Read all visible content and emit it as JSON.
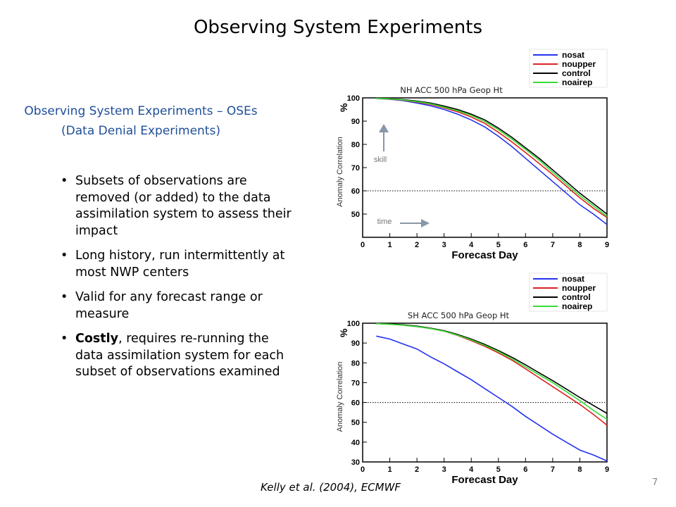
{
  "slide": {
    "title": "Observing System Experiments",
    "subtitle": [
      "Observing System Experiments – OSEs",
      "(Data Denial Experiments)"
    ],
    "bullets": [
      {
        "text": "Subsets of observations are removed (or added) to the data assimilation system to assess their impact"
      },
      {
        "text": "Long history, run intermittently at most NWP centers"
      },
      {
        "text": "Valid for any forecast range or measure"
      },
      {
        "bold": "Costly",
        "text": ", requires re-running the data assimilation system for each subset of observations examined"
      }
    ],
    "citation": "Kelly et al. (2004), ECMWF",
    "page_number": "7"
  },
  "chart_data": [
    {
      "type": "line",
      "title": "NH ACC 500 hPa Geop Ht",
      "x_label": "Forecast Day",
      "y_label": "Anomaly Correlation",
      "y_unit": "%",
      "annotations": [
        "skill",
        "time"
      ],
      "x": [
        0.5,
        1,
        1.5,
        2,
        2.5,
        3,
        3.5,
        4,
        4.5,
        5,
        5.5,
        6,
        6.5,
        7,
        7.5,
        8,
        8.5,
        9
      ],
      "xlim": [
        0,
        9
      ],
      "xticks": [
        0,
        1,
        2,
        3,
        4,
        5,
        6,
        7,
        8,
        9
      ],
      "ylim": [
        40,
        100
      ],
      "yticks": [
        50,
        60,
        70,
        80,
        90,
        100
      ],
      "hline": 60,
      "series": [
        {
          "name": "nosat",
          "color": "#2233ee",
          "values": [
            99.8,
            99.4,
            98.8,
            97.8,
            96.6,
            95,
            93,
            90.5,
            87.5,
            83.5,
            79,
            74,
            69,
            64,
            59,
            54,
            50,
            45.5
          ]
        },
        {
          "name": "noupper",
          "color": "#dd2222",
          "values": [
            99.8,
            99.5,
            99,
            98.2,
            97.2,
            95.7,
            94,
            91.8,
            89,
            85.2,
            81,
            76.5,
            71.8,
            67,
            62,
            57,
            52.5,
            48.5
          ]
        },
        {
          "name": "control",
          "color": "#000000",
          "values": [
            99.8,
            99.6,
            99.2,
            98.6,
            97.8,
            96.5,
            95,
            93,
            90.5,
            87,
            83,
            78.5,
            74,
            69,
            64,
            59,
            54.5,
            50
          ]
        },
        {
          "name": "noairep",
          "color": "#33dd33",
          "values": [
            99.8,
            99.6,
            99.1,
            98.4,
            97.5,
            96,
            94.5,
            92.5,
            89.8,
            86.3,
            82.2,
            77.8,
            73.2,
            68,
            63,
            58,
            53.5,
            49
          ]
        }
      ]
    },
    {
      "type": "line",
      "title": "SH ACC 500 hPa Geop Ht",
      "x_label": "Forecast Day",
      "y_label": "Anomaly Correlation",
      "y_unit": "%",
      "x": [
        0.5,
        1,
        1.5,
        2,
        2.5,
        3,
        3.5,
        4,
        4.5,
        5,
        5.5,
        6,
        6.5,
        7,
        7.5,
        8,
        8.5,
        9
      ],
      "xlim": [
        0,
        9
      ],
      "xticks": [
        0,
        1,
        2,
        3,
        4,
        5,
        6,
        7,
        8,
        9
      ],
      "ylim": [
        30,
        100
      ],
      "yticks": [
        30,
        40,
        50,
        60,
        70,
        80,
        90,
        100
      ],
      "hline": 60,
      "series": [
        {
          "name": "nosat",
          "color": "#2233ee",
          "values": [
            93.5,
            92,
            89.5,
            87,
            83,
            79.5,
            75.5,
            71.5,
            67,
            62.5,
            58,
            53,
            48.5,
            44,
            40,
            36,
            33.5,
            30.5
          ]
        },
        {
          "name": "noupper",
          "color": "#dd2222",
          "values": [
            99.8,
            99.5,
            99,
            98.3,
            97.3,
            96,
            93.8,
            91.2,
            88.3,
            85,
            81.3,
            77,
            72.5,
            68,
            63.5,
            59,
            54,
            48.5
          ]
        },
        {
          "name": "control",
          "color": "#000000",
          "values": [
            99.8,
            99.6,
            99.2,
            98.5,
            97.5,
            96.2,
            94.3,
            92,
            89.3,
            86.2,
            82.8,
            79,
            75,
            71,
            66.8,
            62.5,
            58.5,
            54.5
          ]
        },
        {
          "name": "noairep",
          "color": "#33dd33",
          "values": [
            99.8,
            99.5,
            99,
            98.3,
            97.3,
            96,
            94,
            91.6,
            88.8,
            85.7,
            82,
            78,
            74,
            70,
            65.5,
            61,
            56,
            51.5
          ]
        }
      ]
    }
  ]
}
